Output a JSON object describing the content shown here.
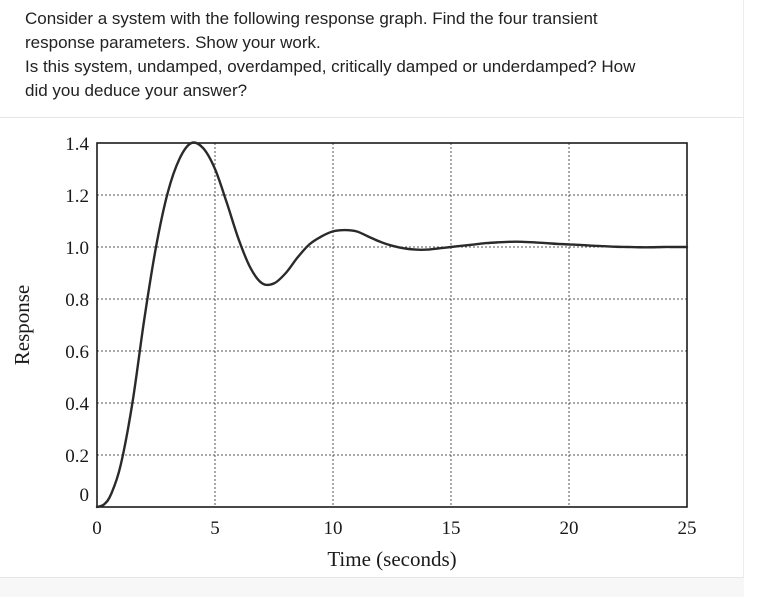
{
  "question": {
    "text": "Consider a system with the following response graph. Find the four transient\nresponse parameters.  Show your work.\nIs this system, undamped, overdamped, critically damped or underdamped? How\ndid you deduce your answer?"
  },
  "chart_data": {
    "type": "line",
    "title": "",
    "xlabel": "Time (seconds)",
    "ylabel": "Response",
    "xlim": [
      0,
      25
    ],
    "ylim": [
      0,
      1.4
    ],
    "x_ticks": [
      "0",
      "5",
      "10",
      "15",
      "20",
      "25"
    ],
    "y_ticks": [
      "0",
      "0.2",
      "0.4",
      "0.6",
      "0.8",
      "1.0",
      "1.2",
      "1.4"
    ],
    "grid": true,
    "grid_style": "dotted",
    "line_color": "#2a2a2a",
    "series": [
      {
        "x": [
          0,
          0.3,
          0.6,
          1.0,
          1.5,
          2.0,
          2.5,
          3.0,
          3.5,
          4.0,
          4.5,
          5.0,
          5.5,
          6.0,
          6.5,
          7.0,
          7.5,
          8.0,
          8.5,
          9.0,
          9.5,
          10.0,
          10.5,
          11.0,
          11.5,
          12.0,
          12.5,
          13.0,
          13.5,
          14.0,
          14.5,
          15.0,
          15.5,
          16.0,
          16.5,
          17.0,
          17.5,
          18.0,
          18.5,
          19.0,
          19.5,
          20.0,
          20.5,
          21.0,
          21.5,
          22.0,
          22.5,
          23.0,
          23.5,
          24.0,
          24.5,
          25.0
        ],
        "y": [
          0,
          0.01,
          0.05,
          0.16,
          0.4,
          0.72,
          1.0,
          1.21,
          1.34,
          1.4,
          1.38,
          1.3,
          1.17,
          1.03,
          0.92,
          0.86,
          0.86,
          0.9,
          0.96,
          1.01,
          1.04,
          1.06,
          1.065,
          1.06,
          1.04,
          1.02,
          1.005,
          0.995,
          0.99,
          0.99,
          0.995,
          1.0,
          1.005,
          1.01,
          1.015,
          1.018,
          1.02,
          1.02,
          1.018,
          1.015,
          1.012,
          1.01,
          1.008,
          1.005,
          1.003,
          1.001,
          1.0,
          0.999,
          0.999,
          1.0,
          1.0,
          1.0
        ]
      }
    ]
  }
}
